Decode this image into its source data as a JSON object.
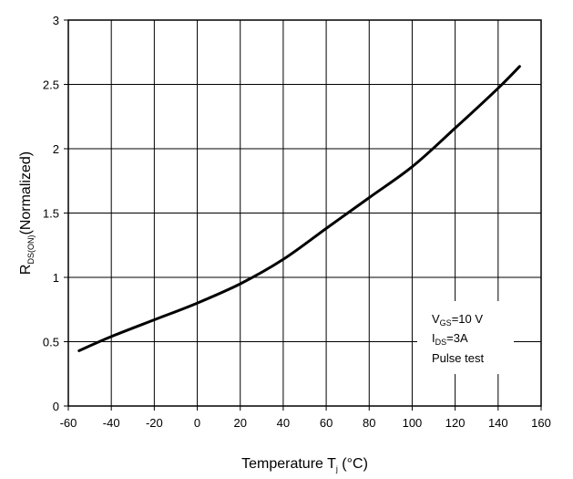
{
  "chart_data": {
    "type": "line",
    "xlabel": "Temperature T",
    "xlabel_sub": "j",
    "xlabel_unit": " (°C)",
    "ylabel": "R",
    "ylabel_sub": "DS(ON)",
    "ylabel_rest": "(Normalized)",
    "xlim": [
      -60,
      160
    ],
    "ylim": [
      0,
      3
    ],
    "xticks": [
      -60,
      -40,
      -20,
      0,
      20,
      40,
      60,
      80,
      100,
      120,
      140,
      160
    ],
    "yticks": [
      0,
      0.5,
      1,
      1.5,
      2,
      2.5,
      3
    ],
    "ytick_labels": [
      "0",
      "0.5",
      "1",
      "1.5",
      "2",
      "2.5",
      "3"
    ],
    "grid": true,
    "series": [
      {
        "x": [
          -55,
          -40,
          -20,
          0,
          20,
          40,
          60,
          80,
          100,
          120,
          140,
          150
        ],
        "y": [
          0.43,
          0.54,
          0.67,
          0.8,
          0.95,
          1.14,
          1.38,
          1.62,
          1.86,
          2.16,
          2.47,
          2.64
        ],
        "color": "#000000"
      }
    ],
    "annotation": {
      "line1_main": "V",
      "line1_sub": "GS",
      "line1_rest": "=10 V",
      "line2_main": "I",
      "line2_sub": "DS",
      "line2_rest": "=3A",
      "line3": "Pulse test"
    }
  }
}
